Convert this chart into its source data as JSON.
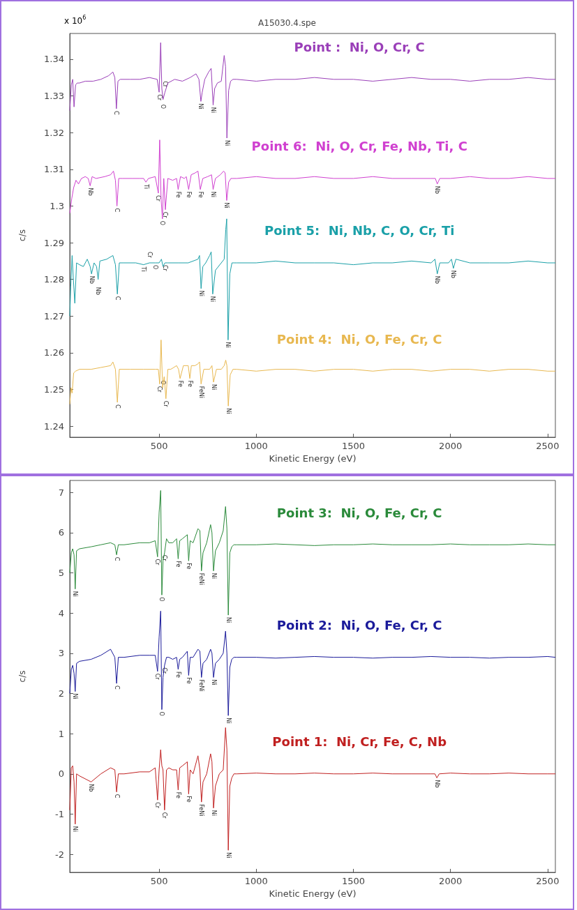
{
  "chart_data": [
    {
      "type": "line",
      "title": "A15030.4.spe",
      "xlabel": "Kinetic Energy (eV)",
      "ylabel": "c/s",
      "xlim": [
        40,
        2540
      ],
      "xticks": [
        500,
        1000,
        1500,
        2000,
        2500
      ],
      "ylim": [
        1.237,
        1.347
      ],
      "yticks": [
        1.24,
        1.25,
        1.26,
        1.27,
        1.28,
        1.29,
        1.3,
        1.31,
        1.32,
        1.33,
        1.34
      ],
      "grid": false,
      "legend": false,
      "marker": "none",
      "series": [
        {
          "name": "Point :  Ni, O, Cr, C",
          "color": "#9a3fb8",
          "x": [
            40,
            48,
            55,
            62,
            70,
            78,
            90,
            120,
            160,
            200,
            240,
            262,
            272,
            280,
            288,
            300,
            350,
            400,
            450,
            490,
            500,
            508,
            514,
            520,
            530,
            545,
            580,
            620,
            660,
            690,
            705,
            715,
            722,
            735,
            755,
            768,
            778,
            786,
            800,
            820,
            835,
            842,
            849,
            858,
            868,
            880,
            900,
            1000,
            1100,
            1200,
            1300,
            1400,
            1500,
            1600,
            1700,
            1800,
            1900,
            2000,
            2100,
            2200,
            2300,
            2400,
            2500,
            2540
          ],
          "values": [
            1.326,
            1.333,
            1.3345,
            1.327,
            1.333,
            1.3335,
            1.3335,
            1.334,
            1.334,
            1.3345,
            1.3355,
            1.3365,
            1.335,
            1.3265,
            1.334,
            1.3345,
            1.3345,
            1.3345,
            1.335,
            1.3345,
            1.331,
            1.3445,
            1.332,
            1.329,
            1.331,
            1.3335,
            1.3345,
            1.334,
            1.335,
            1.336,
            1.3345,
            1.3285,
            1.331,
            1.3345,
            1.3365,
            1.3375,
            1.3275,
            1.332,
            1.3335,
            1.334,
            1.341,
            1.338,
            1.3185,
            1.3315,
            1.334,
            1.3345,
            1.3345,
            1.334,
            1.3345,
            1.3345,
            1.335,
            1.3345,
            1.3345,
            1.334,
            1.3345,
            1.335,
            1.3345,
            1.3345,
            1.334,
            1.3345,
            1.3345,
            1.335,
            1.3345,
            1.3345
          ]
        },
        {
          "name": "Point 6:  Ni, O, Cr, Fe, Nb, Ti, C",
          "color": "#d040d0",
          "x": [
            40,
            50,
            60,
            72,
            85,
            100,
            120,
            135,
            145,
            155,
            175,
            220,
            250,
            265,
            275,
            283,
            292,
            310,
            360,
            400,
            420,
            432,
            445,
            480,
            496,
            503,
            510,
            517,
            524,
            532,
            545,
            570,
            590,
            598,
            610,
            630,
            640,
            652,
            665,
            685,
            700,
            712,
            725,
            750,
            770,
            778,
            790,
            815,
            832,
            840,
            848,
            858,
            870,
            880,
            900,
            1000,
            1100,
            1200,
            1300,
            1400,
            1500,
            1600,
            1700,
            1800,
            1900,
            1922,
            1932,
            1945,
            2000,
            2100,
            2200,
            2300,
            2400,
            2500,
            2540
          ],
          "values": [
            1.298,
            1.302,
            1.305,
            1.307,
            1.306,
            1.3075,
            1.308,
            1.3075,
            1.3055,
            1.308,
            1.3075,
            1.308,
            1.3085,
            1.3095,
            1.307,
            1.3,
            1.3075,
            1.3075,
            1.3075,
            1.3075,
            1.3075,
            1.3065,
            1.3075,
            1.308,
            1.3035,
            1.318,
            1.302,
            1.2965,
            1.3075,
            1.299,
            1.3075,
            1.307,
            1.3075,
            1.3045,
            1.308,
            1.3075,
            1.308,
            1.3045,
            1.3085,
            1.309,
            1.3095,
            1.3045,
            1.3075,
            1.308,
            1.3085,
            1.3045,
            1.3075,
            1.3085,
            1.3095,
            1.309,
            1.3015,
            1.3065,
            1.3075,
            1.3075,
            1.3075,
            1.308,
            1.3075,
            1.3075,
            1.308,
            1.3075,
            1.3075,
            1.308,
            1.3075,
            1.3075,
            1.3075,
            1.3075,
            1.306,
            1.3075,
            1.3075,
            1.308,
            1.3075,
            1.3075,
            1.308,
            1.3075,
            1.3075
          ]
        },
        {
          "name": "Point 5:  Ni, Nb, C, O, Cr, Ti",
          "color": "#1aa0a8",
          "x": [
            40,
            45,
            52,
            58,
            66,
            75,
            90,
            110,
            130,
            145,
            152,
            165,
            178,
            186,
            195,
            230,
            262,
            275,
            285,
            295,
            320,
            380,
            420,
            450,
            480,
            500,
            512,
            520,
            530,
            545,
            600,
            650,
            700,
            708,
            716,
            725,
            740,
            760,
            768,
            776,
            790,
            820,
            835,
            843,
            848,
            855,
            864,
            875,
            885,
            900,
            1000,
            1100,
            1200,
            1300,
            1400,
            1500,
            1600,
            1700,
            1800,
            1900,
            1920,
            1932,
            1945,
            1990,
            2005,
            2015,
            2028,
            2100,
            2200,
            2300,
            2400,
            2500,
            2540
          ],
          "values": [
            1.27,
            1.278,
            1.2865,
            1.2805,
            1.2735,
            1.2845,
            1.284,
            1.2835,
            1.2855,
            1.2835,
            1.2815,
            1.2845,
            1.2835,
            1.28,
            1.285,
            1.2855,
            1.2865,
            1.284,
            1.276,
            1.2845,
            1.2845,
            1.2845,
            1.284,
            1.2845,
            1.2845,
            1.2845,
            1.2855,
            1.2835,
            1.2845,
            1.2845,
            1.2845,
            1.2845,
            1.2855,
            1.2865,
            1.2775,
            1.2835,
            1.2845,
            1.2865,
            1.2875,
            1.276,
            1.2825,
            1.2845,
            1.2855,
            1.2935,
            1.2965,
            1.2635,
            1.2815,
            1.2845,
            1.2845,
            1.2845,
            1.2845,
            1.285,
            1.2845,
            1.2845,
            1.2845,
            1.284,
            1.2845,
            1.2845,
            1.285,
            1.2845,
            1.2855,
            1.2815,
            1.2845,
            1.2845,
            1.2855,
            1.283,
            1.2855,
            1.2845,
            1.2845,
            1.2845,
            1.285,
            1.2845,
            1.2845
          ]
        },
        {
          "name": "Point 4:  Ni, O, Fe, Cr, C",
          "color": "#e8b850",
          "x": [
            40,
            46,
            52,
            60,
            70,
            90,
            150,
            200,
            250,
            262,
            275,
            285,
            295,
            350,
            420,
            480,
            496,
            503,
            510,
            518,
            526,
            535,
            545,
            560,
            590,
            600,
            608,
            625,
            650,
            658,
            666,
            685,
            700,
            708,
            716,
            730,
            760,
            772,
            780,
            795,
            820,
            835,
            843,
            849,
            856,
            866,
            880,
            900,
            1000,
            1100,
            1200,
            1300,
            1400,
            1500,
            1600,
            1700,
            1800,
            1900,
            2000,
            2100,
            2200,
            2300,
            2400,
            2500,
            2540
          ],
          "values": [
            1.246,
            1.2505,
            1.249,
            1.2545,
            1.255,
            1.2555,
            1.2555,
            1.256,
            1.2565,
            1.2575,
            1.2555,
            1.2465,
            1.2555,
            1.2555,
            1.2555,
            1.2555,
            1.2555,
            1.2515,
            1.2635,
            1.2505,
            1.2535,
            1.2475,
            1.2555,
            1.2555,
            1.2565,
            1.2555,
            1.253,
            1.2565,
            1.2565,
            1.253,
            1.2565,
            1.2565,
            1.257,
            1.2575,
            1.2515,
            1.2555,
            1.2555,
            1.2565,
            1.252,
            1.2555,
            1.2555,
            1.2565,
            1.258,
            1.2565,
            1.2455,
            1.254,
            1.2555,
            1.2555,
            1.255,
            1.2555,
            1.2555,
            1.255,
            1.2555,
            1.2555,
            1.255,
            1.2555,
            1.2555,
            1.255,
            1.2555,
            1.2555,
            1.255,
            1.2555,
            1.2555,
            1.255,
            1.255
          ]
        }
      ],
      "annotations": [
        "x 10$^{6}$",
        {
          "text": "C",
          "x": 280,
          "y": 1.3265
        },
        {
          "text": "Cr",
          "x": 500,
          "y": 1.331
        },
        {
          "text": "O",
          "x": 520,
          "y": 1.329
        },
        {
          "text": "Cr",
          "x": 530,
          "y": 1.331
        },
        {
          "text": "Ni",
          "x": 715,
          "y": 1.3285
        },
        {
          "text": "Ni",
          "x": 778,
          "y": 1.3275
        },
        {
          "text": "Ni",
          "x": 849,
          "y": 1.3185
        },
        {
          "text": "Nb",
          "x": 145,
          "y": 1.3055
        },
        {
          "text": "C",
          "x": 283,
          "y": 1.3
        },
        {
          "text": "Ti",
          "x": 432,
          "y": 1.3065
        },
        {
          "text": "Cr",
          "x": 496,
          "y": 1.3035
        },
        {
          "text": "O",
          "x": 517,
          "y": 1.2965
        },
        {
          "text": "Cr",
          "x": 532,
          "y": 1.299
        },
        {
          "text": "Fe",
          "x": 598,
          "y": 1.3045
        },
        {
          "text": "Fe",
          "x": 652,
          "y": 1.3045
        },
        {
          "text": "Fe",
          "x": 712,
          "y": 1.3045
        },
        {
          "text": "Ni",
          "x": 778,
          "y": 1.3045
        },
        {
          "text": "Ni",
          "x": 848,
          "y": 1.3015
        },
        {
          "text": "Nb",
          "x": 1932,
          "y": 1.306
        },
        {
          "text": "Nb",
          "x": 152,
          "y": 1.2815
        },
        {
          "text": "Nb",
          "x": 186,
          "y": 1.28
        },
        {
          "text": "C",
          "x": 285,
          "y": 1.276
        },
        {
          "text": "Ti",
          "x": 420,
          "y": 1.284
        },
        {
          "text": "Cr",
          "x": 450,
          "y": 1.2845
        },
        {
          "text": "O",
          "x": 480,
          "y": 1.2845
        },
        {
          "text": "Cr",
          "x": 530,
          "y": 1.2845
        },
        {
          "text": "Ni",
          "x": 716,
          "y": 1.2775
        },
        {
          "text": "Ni",
          "x": 776,
          "y": 1.276
        },
        {
          "text": "Ni",
          "x": 855,
          "y": 1.2635
        },
        {
          "text": "Nb",
          "x": 1932,
          "y": 1.2815
        },
        {
          "text": "Nb",
          "x": 2015,
          "y": 1.283
        },
        {
          "text": "C",
          "x": 285,
          "y": 1.2465
        },
        {
          "text": "Cr",
          "x": 503,
          "y": 1.2515
        },
        {
          "text": "O",
          "x": 518,
          "y": 1.2505
        },
        {
          "text": "Cr",
          "x": 535,
          "y": 1.2475
        },
        {
          "text": "Fe",
          "x": 608,
          "y": 1.253
        },
        {
          "text": "Fe",
          "x": 658,
          "y": 1.253
        },
        {
          "text": "FeNi",
          "x": 716,
          "y": 1.2515
        },
        {
          "text": "Ni",
          "x": 780,
          "y": 1.252
        },
        {
          "text": "Ni",
          "x": 856,
          "y": 1.2455
        }
      ]
    },
    {
      "type": "line",
      "xlabel": "Kinetic Energy (eV)",
      "ylabel": "c/s",
      "xlim": [
        40,
        2540
      ],
      "xticks": [
        500,
        1000,
        1500,
        2000,
        2500
      ],
      "ylim": [
        -2.45,
        7.3
      ],
      "yticks": [
        -2,
        -1,
        0,
        1,
        2,
        3,
        4,
        5,
        6,
        7
      ],
      "grid": false,
      "legend": false,
      "marker": "none",
      "series": [
        {
          "name": "Point 3:  Ni, O, Fe, Cr, C",
          "color": "#2a8a3a",
          "x": [
            40,
            48,
            55,
            62,
            68,
            75,
            90,
            150,
            200,
            250,
            272,
            281,
            290,
            320,
            400,
            450,
            480,
            492,
            500,
            508,
            514,
            520,
            528,
            538,
            550,
            570,
            590,
            598,
            606,
            620,
            645,
            652,
            660,
            675,
            700,
            710,
            718,
            726,
            745,
            765,
            772,
            780,
            790,
            810,
            830,
            842,
            849,
            856,
            864,
            874,
            885,
            900,
            1000,
            1100,
            1200,
            1300,
            1400,
            1500,
            1600,
            1700,
            1800,
            1900,
            2000,
            2100,
            2200,
            2300,
            2400,
            2500,
            2540
          ],
          "values": [
            5.0,
            5.5,
            5.6,
            5.45,
            4.6,
            5.55,
            5.6,
            5.65,
            5.7,
            5.75,
            5.7,
            5.45,
            5.7,
            5.7,
            5.75,
            5.75,
            5.8,
            5.4,
            6.5,
            7.05,
            4.45,
            5.3,
            5.5,
            5.85,
            5.75,
            5.75,
            5.85,
            5.35,
            5.8,
            5.85,
            5.95,
            5.3,
            5.8,
            5.75,
            6.1,
            6.05,
            5.05,
            5.5,
            5.75,
            6.2,
            6.0,
            5.05,
            5.55,
            5.75,
            6.05,
            6.65,
            6.1,
            3.95,
            5.5,
            5.65,
            5.7,
            5.7,
            5.7,
            5.72,
            5.7,
            5.68,
            5.7,
            5.7,
            5.72,
            5.7,
            5.7,
            5.7,
            5.72,
            5.7,
            5.7,
            5.7,
            5.72,
            5.7,
            5.7
          ]
        },
        {
          "name": "Point 2:  Ni, O, Fe, Cr, C",
          "color": "#1a1a9a",
          "x": [
            40,
            48,
            55,
            62,
            68,
            75,
            90,
            150,
            200,
            250,
            272,
            281,
            290,
            320,
            400,
            450,
            480,
            492,
            500,
            508,
            514,
            520,
            528,
            538,
            550,
            570,
            590,
            598,
            606,
            620,
            645,
            652,
            660,
            675,
            700,
            710,
            718,
            726,
            745,
            765,
            772,
            780,
            790,
            810,
            830,
            842,
            849,
            856,
            864,
            874,
            885,
            900,
            1000,
            1100,
            1200,
            1300,
            1400,
            1500,
            1600,
            1700,
            1800,
            1900,
            2000,
            2100,
            2200,
            2300,
            2400,
            2500,
            2540
          ],
          "values": [
            2.0,
            2.6,
            2.7,
            2.5,
            2.05,
            2.75,
            2.8,
            2.85,
            2.95,
            3.1,
            2.9,
            2.25,
            2.9,
            2.9,
            2.95,
            2.95,
            2.95,
            2.55,
            3.4,
            4.05,
            1.6,
            2.4,
            2.7,
            2.9,
            2.9,
            2.85,
            2.9,
            2.6,
            2.85,
            2.9,
            3.05,
            2.45,
            2.9,
            2.9,
            3.1,
            3.05,
            2.4,
            2.75,
            2.85,
            3.1,
            3.0,
            2.4,
            2.75,
            2.85,
            3.0,
            3.55,
            3.0,
            1.45,
            2.65,
            2.85,
            2.9,
            2.9,
            2.9,
            2.88,
            2.9,
            2.92,
            2.9,
            2.9,
            2.88,
            2.9,
            2.9,
            2.92,
            2.9,
            2.9,
            2.88,
            2.9,
            2.9,
            2.92,
            2.9
          ]
        },
        {
          "name": "Point 1:  Ni, Cr, Fe, C, Nb",
          "color": "#c02020",
          "x": [
            40,
            48,
            55,
            62,
            68,
            75,
            90,
            150,
            200,
            250,
            272,
            281,
            290,
            320,
            400,
            450,
            480,
            492,
            500,
            508,
            514,
            520,
            528,
            538,
            550,
            570,
            590,
            598,
            606,
            620,
            645,
            652,
            660,
            675,
            700,
            710,
            718,
            726,
            745,
            765,
            772,
            780,
            790,
            810,
            830,
            842,
            849,
            856,
            864,
            874,
            885,
            900,
            1000,
            1100,
            1200,
            1300,
            1400,
            1500,
            1600,
            1700,
            1800,
            1900,
            1920,
            1930,
            1942,
            2000,
            2100,
            2200,
            2300,
            2400,
            2500,
            2540
          ],
          "values": [
            -0.9,
            0.15,
            0.2,
            -0.2,
            -1.25,
            0.0,
            -0.05,
            -0.2,
            0.0,
            0.15,
            0.1,
            -0.45,
            0.0,
            0.0,
            0.05,
            0.05,
            0.15,
            -0.65,
            0.1,
            0.6,
            0.2,
            0.1,
            -0.9,
            0.1,
            0.15,
            0.1,
            0.1,
            -0.4,
            0.15,
            0.2,
            0.3,
            -0.5,
            0.1,
            0.0,
            0.45,
            0.1,
            -0.7,
            -0.2,
            0.0,
            0.5,
            0.3,
            -0.85,
            -0.3,
            0.0,
            0.1,
            1.15,
            0.6,
            -1.9,
            -0.3,
            -0.1,
            0.0,
            0.0,
            0.02,
            0.0,
            0.0,
            0.02,
            0.0,
            0.0,
            0.02,
            0.0,
            0.0,
            0.0,
            0.0,
            -0.1,
            0.0,
            0.02,
            0.0,
            0.0,
            0.02,
            0.0,
            0.0,
            0.0
          ]
        }
      ],
      "annotations": [
        {
          "text": "Ni",
          "x": 68,
          "y": 4.6
        },
        {
          "text": "C",
          "x": 281,
          "y": 5.45
        },
        {
          "text": "Cr",
          "x": 492,
          "y": 5.4
        },
        {
          "text": "O",
          "x": 514,
          "y": 4.45
        },
        {
          "text": "Cr",
          "x": 528,
          "y": 5.5
        },
        {
          "text": "Fe",
          "x": 598,
          "y": 5.35
        },
        {
          "text": "Fe",
          "x": 652,
          "y": 5.3
        },
        {
          "text": "FeNi",
          "x": 718,
          "y": 5.05
        },
        {
          "text": "Ni",
          "x": 780,
          "y": 5.05
        },
        {
          "text": "Ni",
          "x": 856,
          "y": 3.95
        },
        {
          "text": "Ni",
          "x": 68,
          "y": 2.05
        },
        {
          "text": "C",
          "x": 281,
          "y": 2.25
        },
        {
          "text": "Cr",
          "x": 492,
          "y": 2.55
        },
        {
          "text": "O",
          "x": 514,
          "y": 1.6
        },
        {
          "text": "Cr",
          "x": 528,
          "y": 2.7
        },
        {
          "text": "Fe",
          "x": 598,
          "y": 2.6
        },
        {
          "text": "Fe",
          "x": 652,
          "y": 2.45
        },
        {
          "text": "FeNi",
          "x": 718,
          "y": 2.4
        },
        {
          "text": "Ni",
          "x": 780,
          "y": 2.4
        },
        {
          "text": "Ni",
          "x": 856,
          "y": 1.45
        },
        {
          "text": "Ni",
          "x": 68,
          "y": -1.25
        },
        {
          "text": "Nb",
          "x": 150,
          "y": -0.2
        },
        {
          "text": "C",
          "x": 281,
          "y": -0.45
        },
        {
          "text": "Cr",
          "x": 492,
          "y": -0.65
        },
        {
          "text": "Cr",
          "x": 528,
          "y": -0.9
        },
        {
          "text": "Fe",
          "x": 598,
          "y": -0.4
        },
        {
          "text": "Fe",
          "x": 652,
          "y": -0.5
        },
        {
          "text": "FeNi",
          "x": 718,
          "y": -0.7
        },
        {
          "text": "Ni",
          "x": 780,
          "y": -0.85
        },
        {
          "text": "Ni",
          "x": 856,
          "y": -1.9
        },
        {
          "text": "Nb",
          "x": 1930,
          "y": -0.1
        }
      ]
    }
  ]
}
